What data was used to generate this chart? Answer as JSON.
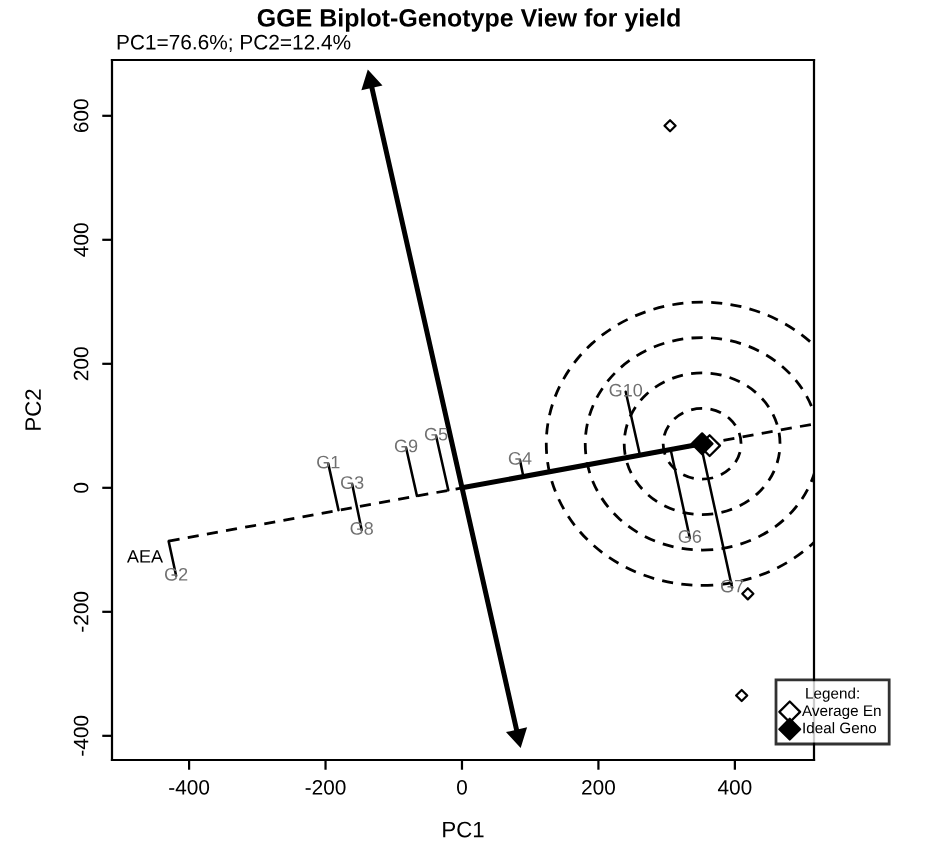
{
  "chart_data": {
    "type": "scatter",
    "title": "GGE Biplot-Genotype View for yield",
    "subtitle": "PC1=76.6%; PC2=12.4%",
    "xlabel": "PC1",
    "ylabel": "PC2",
    "legend_title": "Legend:",
    "legend": "bottom right",
    "grid": false,
    "xlim": [
      -513,
      516
    ],
    "ylim": [
      -439,
      690
    ],
    "xticks": [
      -400,
      -200,
      0,
      200,
      400
    ],
    "yticks": [
      -400,
      -200,
      0,
      200,
      400,
      600
    ],
    "series": [
      {
        "type": "line",
        "line_style": "dashed",
        "color": "#000000",
        "x": [
          -430,
          516
        ],
        "values": [
          -86,
          103
        ]
      },
      {
        "type": "line",
        "line_style": "solid",
        "color": "#000000",
        "x": [
          0,
          352
        ],
        "values": [
          0,
          71
        ]
      },
      {
        "type": "line",
        "line_style": "solid",
        "marker": "triangle",
        "color": "#000000",
        "x": [
          82,
          -134
        ],
        "values": [
          -400,
          655
        ]
      },
      {
        "type": "line",
        "color": "#000000",
        "x": [
          -196,
          -181
        ],
        "values": [
          39,
          -36
        ]
      },
      {
        "type": "line",
        "color": "#000000",
        "x": [
          -161,
          -147
        ],
        "values": [
          6,
          -68
        ]
      },
      {
        "type": "line",
        "color": "#000000",
        "x": [
          -82,
          -66
        ],
        "values": [
          65,
          -13
        ]
      },
      {
        "type": "line",
        "color": "#000000",
        "x": [
          -38,
          -20
        ],
        "values": [
          84,
          -4
        ]
      },
      {
        "type": "line",
        "color": "#000000",
        "x": [
          85,
          90
        ],
        "values": [
          45,
          18
        ]
      },
      {
        "type": "line",
        "color": "#000000",
        "x": [
          240,
          261
        ],
        "values": [
          155,
          52
        ]
      },
      {
        "type": "line",
        "color": "#000000",
        "x": [
          334,
          306
        ],
        "values": [
          -81,
          61
        ]
      },
      {
        "type": "line",
        "color": "#000000",
        "x": [
          396,
          350
        ],
        "values": [
          -161,
          70
        ]
      },
      {
        "type": "line",
        "color": "#000000",
        "x": [
          -419,
          -430
        ],
        "values": [
          -142,
          -86
        ]
      },
      {
        "marker": "diamond",
        "color": "#000000",
        "x": [
          305,
          419,
          410
        ],
        "values": [
          584,
          -171,
          -335
        ]
      },
      {
        "name": "Average En",
        "marker": "diamond",
        "color": "#000000",
        "x": [
          363
        ],
        "values": [
          68
        ]
      },
      {
        "name": "Ideal Geno",
        "marker": "diamond_filled",
        "color": "#000000",
        "x": [
          352
        ],
        "values": [
          71
        ]
      }
    ],
    "annotations": [
      {
        "text": "G1",
        "x": -196,
        "y": 39
      },
      {
        "text": "G3",
        "x": -161,
        "y": 6
      },
      {
        "text": "G8",
        "x": -147,
        "y": -68
      },
      {
        "text": "G9",
        "x": -82,
        "y": 65
      },
      {
        "text": "G5",
        "x": -38,
        "y": 84
      },
      {
        "text": "G4",
        "x": 85,
        "y": 45
      },
      {
        "text": "G10",
        "x": 240,
        "y": 155
      },
      {
        "text": "G6",
        "x": 334,
        "y": -81
      },
      {
        "text": "G7",
        "x": 396,
        "y": -161
      },
      {
        "text": "G2",
        "x": -419,
        "y": -142
      },
      "AEA"
    ]
  }
}
